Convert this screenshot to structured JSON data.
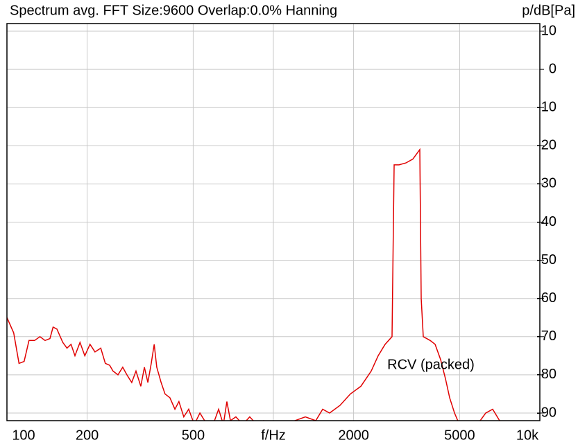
{
  "chart_data": {
    "type": "line",
    "title": "Spectrum avg.  FFT Size:9600  Overlap:0.0%  Hanning",
    "y_label": "p/dB[Pa]",
    "xscale": "log",
    "xlim": [
      100,
      10000
    ],
    "ylim": [
      -92,
      12
    ],
    "xticks": [
      100,
      200,
      500,
      {
        "value": 1000,
        "label": "f/Hz"
      },
      2000,
      5000,
      {
        "value": 10000,
        "label": "10k"
      }
    ],
    "yticks": [
      10,
      0,
      -10,
      -20,
      -30,
      -40,
      -50,
      -60,
      -70,
      -80,
      -90
    ],
    "grid": true,
    "annotations": [
      {
        "text": "RCV (packed)",
        "x": 3900,
        "y": -77.5
      }
    ],
    "x": [
      100,
      106,
      111,
      116,
      121,
      127,
      133,
      139,
      145,
      149,
      154,
      162,
      168,
      174,
      180,
      188,
      196,
      205,
      214,
      225,
      234,
      243,
      250,
      261,
      272,
      282,
      294,
      305,
      318,
      328,
      338,
      348,
      357,
      365,
      379,
      392,
      409,
      427,
      442,
      461,
      481,
      505,
      530,
      552,
      587,
      623,
      649,
      669,
      690,
      723,
      768,
      815,
      866,
      919,
      988,
      1068,
      1134,
      1204,
      1318,
      1442,
      1531,
      1625,
      1778,
      1946,
      2129,
      2329,
      2473,
      2626,
      2788,
      2839,
      2961,
      3144,
      3337,
      3544,
      3587,
      3652,
      3877,
      4045,
      4242,
      4424,
      4587,
      4785,
      4990,
      5557,
      6266,
      6653,
      7063
    ],
    "series": [
      {
        "color": "#e00000",
        "values": [
          -65,
          -69,
          -77,
          -76.5,
          -71,
          -71,
          -70,
          -71,
          -70.5,
          -67.5,
          -68,
          -71.5,
          -73,
          -72,
          -75,
          -71.5,
          -75,
          -72,
          -74,
          -73,
          -77,
          -77.5,
          -79,
          -80,
          -78,
          -80,
          -82,
          -79,
          -83,
          -78,
          -82,
          -77,
          -72,
          -78,
          -82,
          -85,
          -86,
          -89,
          -87,
          -91,
          -89,
          -93,
          -90,
          -92,
          -94,
          -89,
          -93,
          -87,
          -92,
          -91,
          -93,
          -91,
          -93,
          -92,
          -94,
          -93,
          -94,
          -92,
          -91,
          -92,
          -89,
          -90,
          -88,
          -85,
          -83,
          -79,
          -75,
          -72,
          -70,
          -25,
          -25,
          -24.5,
          -23.5,
          -21,
          -60,
          -70,
          -71,
          -72,
          -76,
          -81,
          -86,
          -90,
          -93,
          -95,
          -90,
          -89,
          -92
        ]
      }
    ]
  }
}
